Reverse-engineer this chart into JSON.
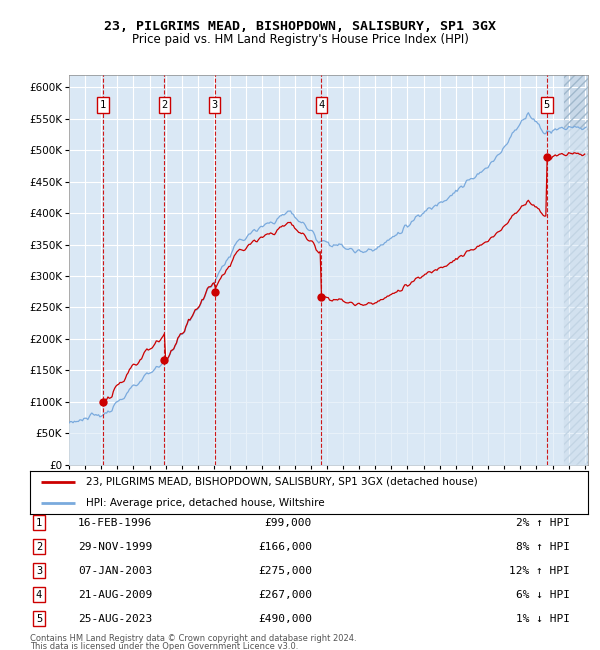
{
  "title1": "23, PILGRIMS MEAD, BISHOPDOWN, SALISBURY, SP1 3GX",
  "title2": "Price paid vs. HM Land Registry's House Price Index (HPI)",
  "ylim": [
    0,
    620000
  ],
  "yticks": [
    0,
    50000,
    100000,
    150000,
    200000,
    250000,
    300000,
    350000,
    400000,
    450000,
    500000,
    550000,
    600000
  ],
  "ytick_labels": [
    "£0",
    "£50K",
    "£100K",
    "£150K",
    "£200K",
    "£250K",
    "£300K",
    "£350K",
    "£400K",
    "£450K",
    "£500K",
    "£550K",
    "£600K"
  ],
  "xlim_start": 1994.3,
  "xlim_end": 2026.2,
  "purchases": [
    {
      "num": 1,
      "date_year": 1996.12,
      "price": 99000
    },
    {
      "num": 2,
      "date_year": 1999.92,
      "price": 166000
    },
    {
      "num": 3,
      "date_year": 2003.03,
      "price": 275000
    },
    {
      "num": 4,
      "date_year": 2009.65,
      "price": 267000
    },
    {
      "num": 5,
      "date_year": 2023.65,
      "price": 490000
    }
  ],
  "price_line_color": "#cc0000",
  "hpi_line_color": "#7aaadd",
  "hpi_fill_color": "#dae8f5",
  "plot_bg_color": "#dae8f5",
  "grid_color": "#ffffff",
  "vline_color": "#cc0000",
  "legend_label1": "23, PILGRIMS MEAD, BISHOPDOWN, SALISBURY, SP1 3GX (detached house)",
  "legend_label2": "HPI: Average price, detached house, Wiltshire",
  "footer1": "Contains HM Land Registry data © Crown copyright and database right 2024.",
  "footer2": "This data is licensed under the Open Government Licence v3.0.",
  "table_rows": [
    [
      1,
      "16-FEB-1996",
      "£99,000",
      "2% ↑ HPI"
    ],
    [
      2,
      "29-NOV-1999",
      "£166,000",
      "8% ↑ HPI"
    ],
    [
      3,
      "07-JAN-2003",
      "£275,000",
      "12% ↑ HPI"
    ],
    [
      4,
      "21-AUG-2009",
      "£267,000",
      "6% ↓ HPI"
    ],
    [
      5,
      "25-AUG-2023",
      "£490,000",
      "1% ↓ HPI"
    ]
  ]
}
